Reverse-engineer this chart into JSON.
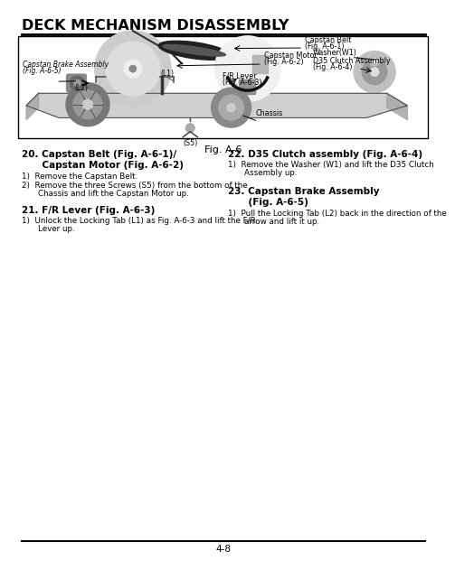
{
  "title": "DECK MECHANISM DISASSEMBLY",
  "fig_label": "Fig. A-6",
  "page_number": "4-8",
  "bg_color": "#ffffff",
  "sec20_head1": "20. Capstan Belt (Fig. A-6-1)/",
  "sec20_head2": "    Capstan Motor (Fig. A-6-2)",
  "sec20_body1": "1)  Remove the Capstan Belt.",
  "sec20_body2": "2)  Remove the three Screws (S5) from the bottom of the",
  "sec20_body3": "    Chassis and lift the Capstan Motor up.",
  "sec21_head": "21. F/R Lever (Fig. A-6-3)",
  "sec21_body1": "1)  Unlock the Locking Tab (L1) as Fig. A-6-3 and lift the F/R",
  "sec21_body2": "    Lever up.",
  "sec22_head": "22. D35 Clutch assembly (Fig. A-6-4)",
  "sec22_body1": "1)  Remove the Washer (W1) and lift the D35 Clutch",
  "sec22_body2": "    Assembly up.",
  "sec23_head1": "23. Capstan Brake Assembly",
  "sec23_head2": "    (Fig. A-6-5)",
  "sec23_body1": "1)  Pull the Locking Tab (L2) back in the direction of the",
  "sec23_body2": "    arrow and lift it up.",
  "diag_labels": {
    "capstan_belt": [
      "Capstan Belt",
      "(Fig. A-6-1)"
    ],
    "capstan_motor": [
      "Capstan Motor",
      "(Fig. A-6-2)"
    ],
    "washer": [
      "Washer(W1)"
    ],
    "d35": [
      "D35 Clutch Assembly",
      "(Fig. A-6-4)"
    ],
    "brake": [
      "Capstan Brake Assembly",
      "(Fig. A-6-5)"
    ],
    "l1": "(L1)",
    "l2": "(L2)",
    "fr": [
      "F/R Lever",
      "(Fig. A-6-3)"
    ],
    "chassis": "Chassis",
    "s5": "(S5)"
  }
}
